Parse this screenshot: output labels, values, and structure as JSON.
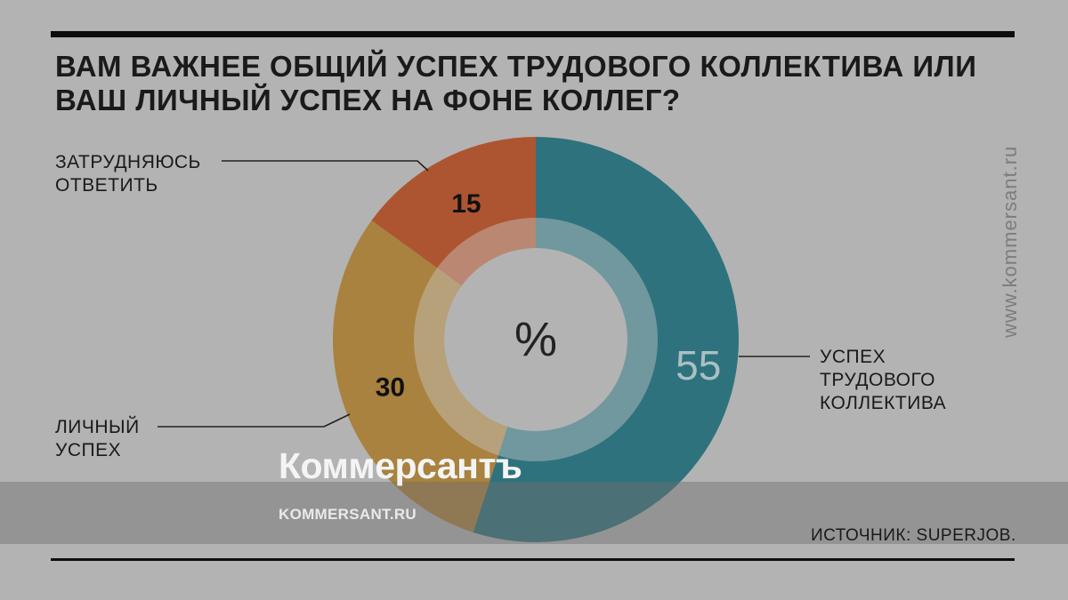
{
  "title": "ВАМ ВАЖНЕЕ ОБЩИЙ УСПЕХ ТРУДОВОГО КОЛЛЕКТИВА ИЛИ ВАШ ЛИЧНЫЙ УСПЕХ НА ФОНЕ КОЛЛЕГ?",
  "side_url": "www.kommersant.ru",
  "source": "ИСТОЧНИК: SUPERJOB.",
  "watermark": {
    "logo": "Коммерсантъ",
    "url": "KOMMERSANT.RU"
  },
  "colors": {
    "team": "#2e727d",
    "personal": "#a8823e",
    "unsure": "#ad5531",
    "background": "#b3b3b3"
  },
  "chart_data": {
    "type": "pie",
    "unit": "%",
    "series": [
      {
        "name": "УСПЕХ ТРУДОВОГО КОЛЛЕКТИВА",
        "label_lines": [
          "УСПЕХ",
          "ТРУДОВОГО",
          "КОЛЛЕКТИВА"
        ],
        "value": 55,
        "color": "#2e727d"
      },
      {
        "name": "ЛИЧНЫЙ УСПЕХ",
        "label_lines": [
          "ЛИЧНЫЙ",
          "УСПЕХ"
        ],
        "value": 30,
        "color": "#a8823e"
      },
      {
        "name": "ЗАТРУДНЯЮСЬ ОТВЕТИТЬ",
        "label_lines": [
          "ЗАТРУДНЯЮСЬ",
          "ОТВЕТИТЬ"
        ],
        "value": 15,
        "color": "#ad5531"
      }
    ]
  }
}
